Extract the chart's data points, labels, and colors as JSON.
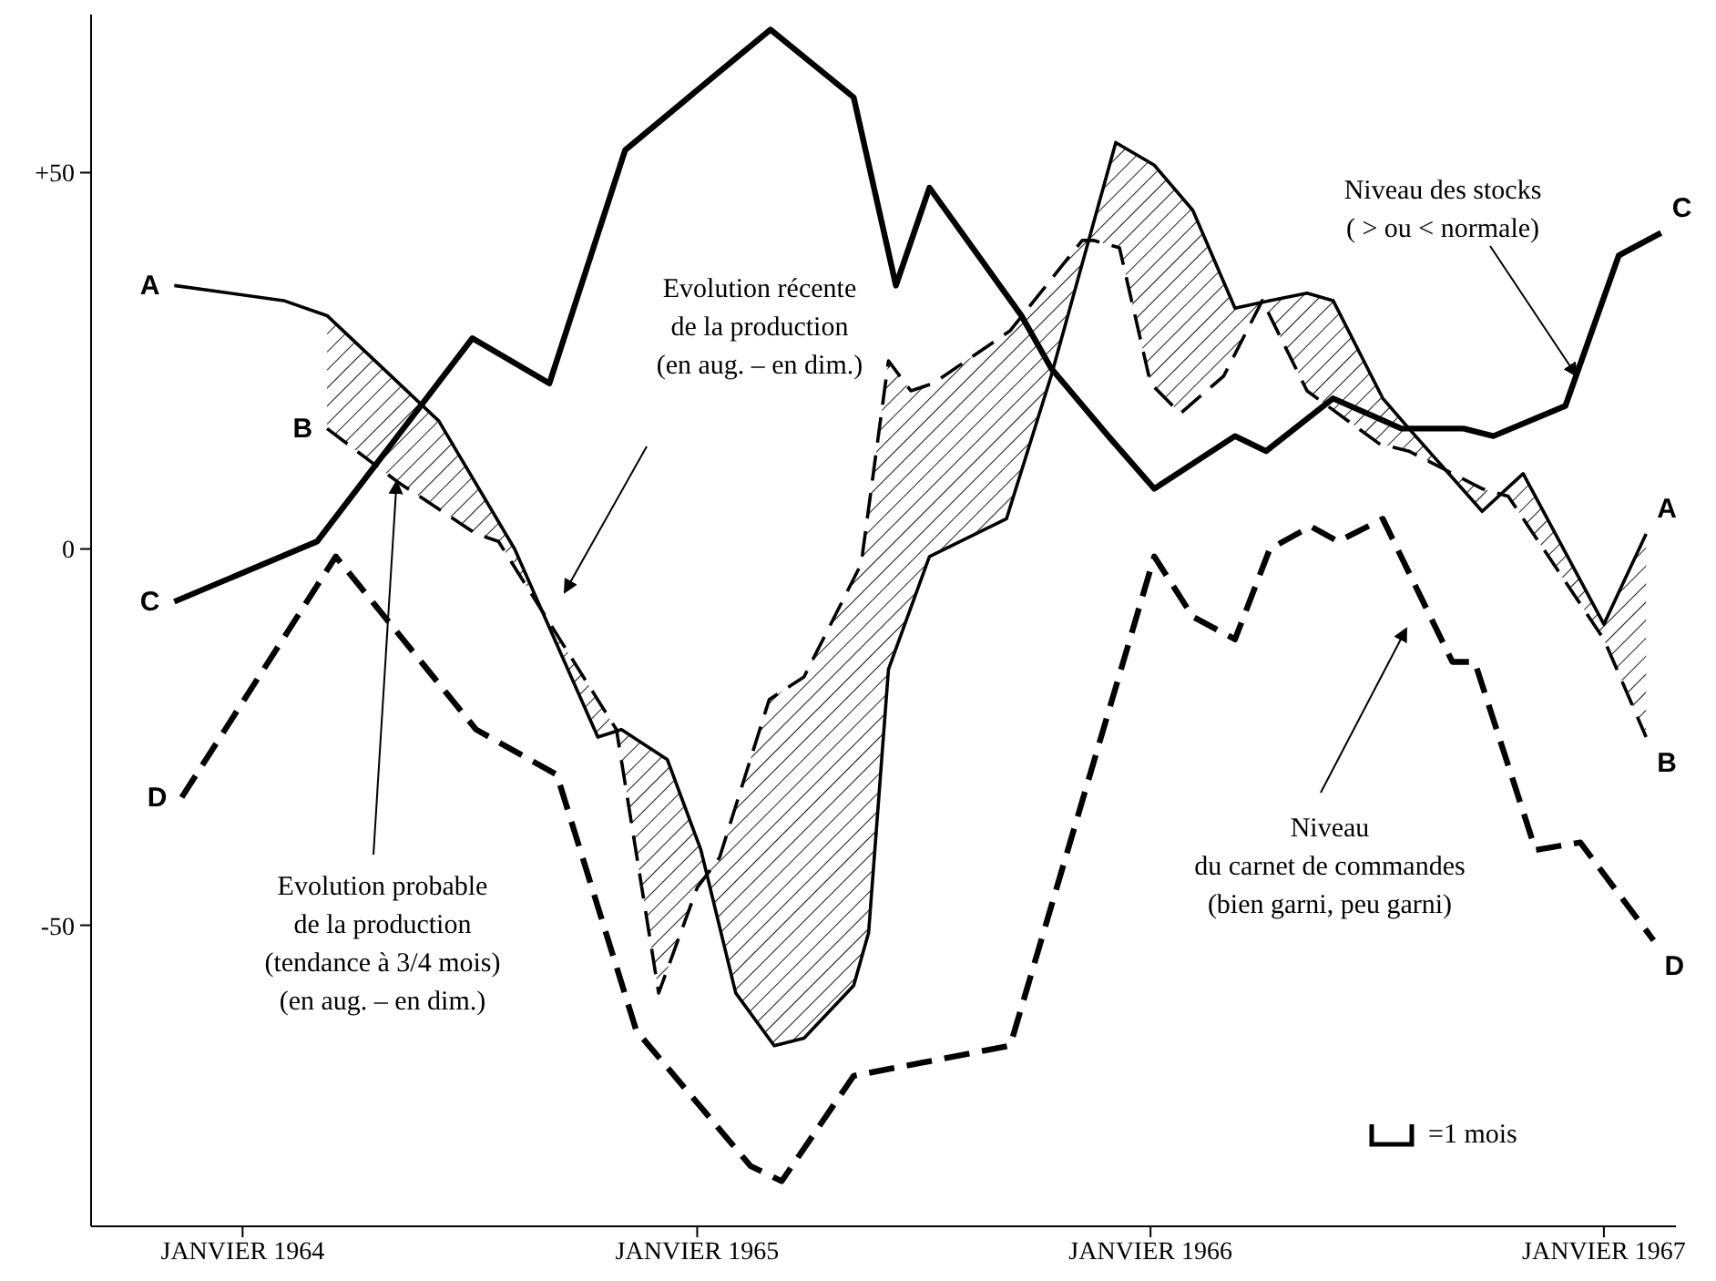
{
  "chart_data": {
    "type": "line",
    "xlim": [
      "1963-09-01",
      "1967-02-28"
    ],
    "ylim": [
      -90,
      71
    ],
    "xticks": [
      {
        "value": "1964-01-01",
        "label": "JANVIER 1964"
      },
      {
        "value": "1965-01-01",
        "label": "JANVIER 1965"
      },
      {
        "value": "1966-01-01",
        "label": "JANVIER 1966"
      },
      {
        "value": "1967-01-01",
        "label": "JANVIER 1967"
      }
    ],
    "yticks": [
      {
        "value": -50,
        "label": "-50"
      },
      {
        "value": 0,
        "label": "0"
      },
      {
        "value": 50,
        "label": "+50"
      }
    ],
    "grid": false,
    "legend": false,
    "marker": "none",
    "annotations": [
      "Evolution récente\nde la production\n(en aug. – en dim.)",
      {
        "text": "Evolution probable\nde la production\n(tendance à 3/4 mois)\n(en aug. – en dim.)",
        "x": "1964-05-04",
        "y": 9
      },
      {
        "text": "Niveau des stocks\n( > ou < normale)",
        "x": "1966-12-10",
        "y": 23
      },
      "Niveau\ndu carnet de commandes\n(bien garni, peu garni)",
      "=1 mois"
    ],
    "series": [
      {
        "name": "A",
        "color": "#000000",
        "line_style": "solid",
        "x": [
          "1963-11-07",
          "1964-02-03",
          "1964-03-09",
          "1964-06-07",
          "1964-08-07",
          "1964-10-13",
          "1964-11-01",
          "1964-12-08",
          "1965-01-04",
          "1965-02-01",
          "1965-03-04",
          "1965-03-28",
          "1965-05-07",
          "1965-05-19",
          "1965-06-04",
          "1965-07-07",
          "1965-09-07",
          "1965-10-13",
          "1965-12-04",
          "1966-01-04",
          "1966-02-04",
          "1966-03-10",
          "1966-04-07",
          "1966-05-07",
          "1966-05-28",
          "1966-07-07",
          "1966-07-28",
          "1966-09-25",
          "1966-10-28",
          "1967-01-01",
          "1967-02-04"
        ],
        "values": [
          35,
          33,
          31,
          17,
          0,
          -25,
          -24,
          -28,
          -40,
          -59,
          -66,
          -65,
          -58,
          -51,
          -16,
          -1,
          4,
          23,
          54,
          51,
          45,
          32,
          33,
          34,
          33,
          20,
          16,
          5,
          10,
          -10,
          2
        ]
      },
      {
        "name": "B",
        "color": "#000000",
        "line_style": "dashed",
        "x": [
          "1964-03-09",
          "1964-04-10",
          "1964-05-04",
          "1964-07-07",
          "1964-07-25",
          "1964-10-28",
          "1964-12-01",
          "1965-01-01",
          "1965-01-19",
          "1965-02-28",
          "1965-03-28",
          "1965-05-13",
          "1965-06-04",
          "1965-06-22",
          "1965-07-10",
          "1965-09-10",
          "1965-11-07",
          "1965-11-16",
          "1965-12-07",
          "1966-01-01",
          "1966-01-25",
          "1966-03-01",
          "1966-04-01",
          "1966-05-07",
          "1966-07-04",
          "1966-07-28",
          "1966-09-25",
          "1966-10-16",
          "1967-01-01",
          "1967-02-04"
        ],
        "values": [
          16,
          12,
          9,
          2,
          1,
          -24,
          -59,
          -45,
          -41,
          -20,
          -17,
          -2,
          25,
          21,
          22,
          29,
          41,
          41,
          40,
          22,
          18,
          23,
          33,
          21,
          14,
          13,
          8,
          7,
          -12,
          -25
        ]
      },
      {
        "name": "C",
        "color": "#000000",
        "line_style": "solid",
        "x": [
          "1963-11-07",
          "1964-03-01",
          "1964-07-04",
          "1964-09-04",
          "1964-11-04",
          "1965-01-16",
          "1965-03-01",
          "1965-05-07",
          "1965-06-10",
          "1965-07-07",
          "1965-09-19",
          "1965-10-13",
          "1965-11-28",
          "1966-01-04",
          "1966-03-10",
          "1966-04-04",
          "1966-05-28",
          "1966-07-22",
          "1966-09-10",
          "1966-10-04",
          "1966-12-01",
          "1967-01-13",
          "1967-02-16"
        ],
        "values": [
          -7,
          1,
          28,
          22,
          53,
          63,
          69,
          60,
          35,
          48,
          31,
          24,
          15,
          8,
          15,
          13,
          20,
          16,
          16,
          15,
          19,
          39,
          42
        ]
      },
      {
        "name": "D",
        "color": "#000000",
        "line_style": "dashed",
        "x": [
          "1963-11-13",
          "1964-03-16",
          "1964-07-07",
          "1964-09-10",
          "1964-11-13",
          "1965-02-13",
          "1965-03-10",
          "1965-05-07",
          "1965-09-10",
          "1966-01-04",
          "1966-02-04",
          "1966-03-10",
          "1966-04-07",
          "1966-05-10",
          "1966-06-01",
          "1966-06-25",
          "1966-07-07",
          "1966-09-01",
          "1966-09-19",
          "1966-11-07",
          "1966-12-13",
          "1967-02-10"
        ],
        "values": [
          -33,
          -1,
          -24,
          -30,
          -64,
          -82,
          -84,
          -70,
          -66,
          -1,
          -9,
          -12,
          0,
          3,
          1,
          3,
          4,
          -15,
          -15,
          -40,
          -39,
          -52
        ]
      }
    ]
  }
}
